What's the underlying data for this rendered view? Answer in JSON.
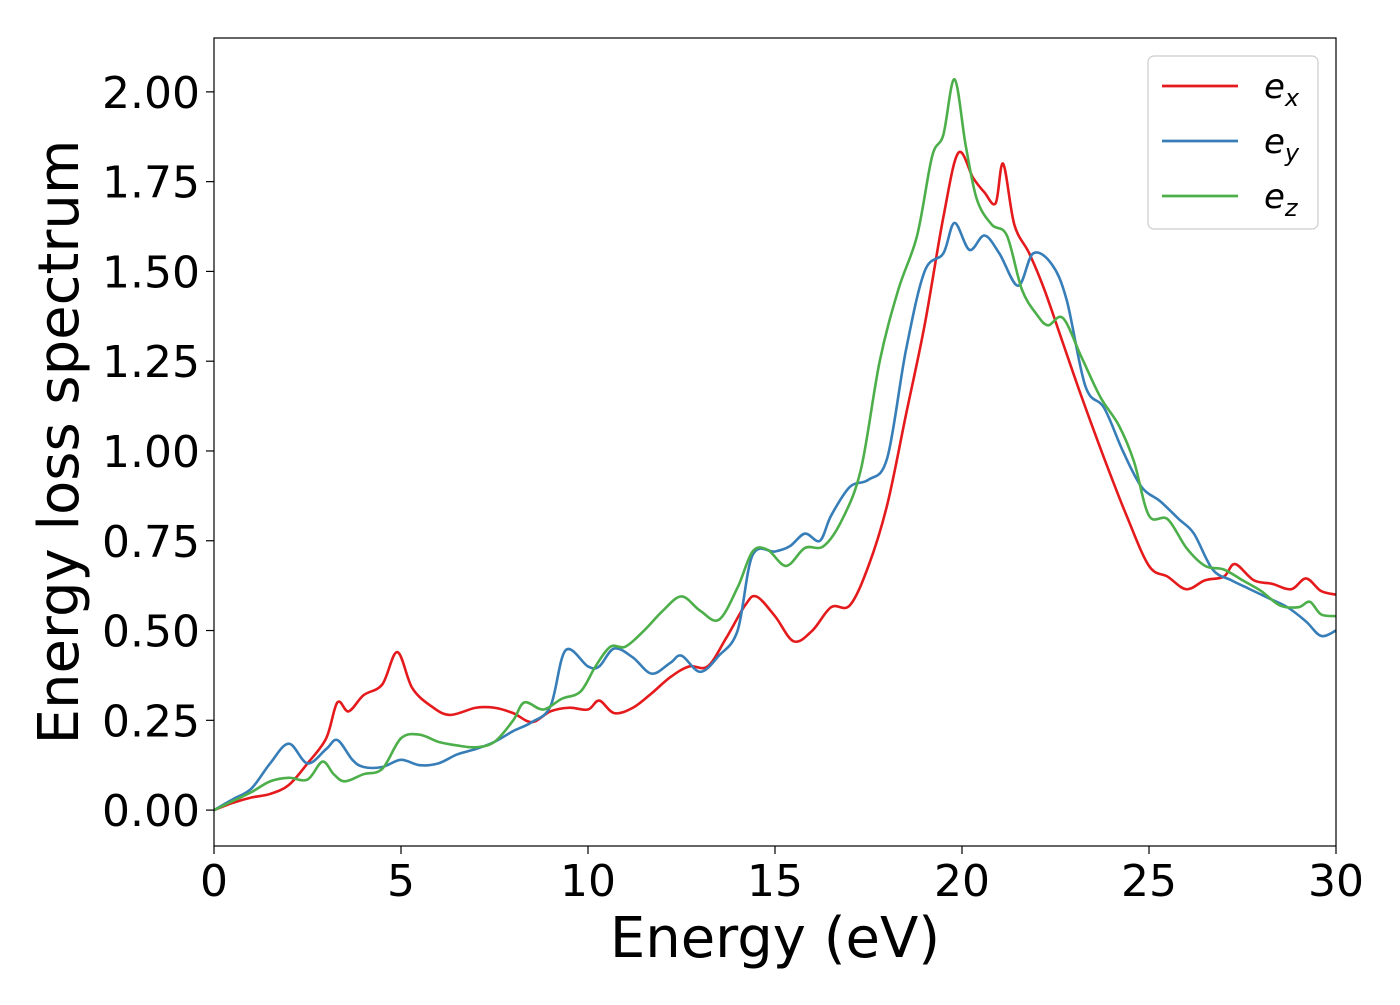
{
  "chart_data": {
    "type": "line",
    "title": "",
    "xlabel": "Energy (eV)",
    "ylabel": "Energy loss spectrum",
    "xlim": [
      0,
      30
    ],
    "ylim": [
      -0.1,
      2.15
    ],
    "x_ticks": [
      0,
      5,
      10,
      15,
      20,
      25,
      30
    ],
    "x_tick_labels": [
      "0",
      "5",
      "10",
      "15",
      "20",
      "25",
      "30"
    ],
    "y_ticks": [
      0.0,
      0.25,
      0.5,
      0.75,
      1.0,
      1.25,
      1.5,
      1.75,
      2.0
    ],
    "y_tick_labels": [
      "0.00",
      "0.25",
      "0.50",
      "0.75",
      "1.00",
      "1.25",
      "1.50",
      "1.75",
      "2.00"
    ],
    "grid": false,
    "legend": {
      "placement": "top-right",
      "entries": [
        {
          "base": "e",
          "sub": "x",
          "color": "#e41a1c"
        },
        {
          "base": "e",
          "sub": "y",
          "color": "#377eb8"
        },
        {
          "base": "e",
          "sub": "z",
          "color": "#4daf4a"
        }
      ]
    },
    "series": [
      {
        "name": "e_x",
        "color": "#e41a1c",
        "points": [
          [
            0,
            0
          ],
          [
            0.5,
            0.02
          ],
          [
            1,
            0.035
          ],
          [
            1.5,
            0.045
          ],
          [
            2,
            0.07
          ],
          [
            2.5,
            0.13
          ],
          [
            3,
            0.2
          ],
          [
            3.3,
            0.3
          ],
          [
            3.6,
            0.275
          ],
          [
            4,
            0.32
          ],
          [
            4.5,
            0.35
          ],
          [
            4.9,
            0.44
          ],
          [
            5.3,
            0.34
          ],
          [
            5.8,
            0.29
          ],
          [
            6.3,
            0.265
          ],
          [
            7,
            0.285
          ],
          [
            7.5,
            0.285
          ],
          [
            8,
            0.27
          ],
          [
            8.5,
            0.245
          ],
          [
            9,
            0.275
          ],
          [
            9.5,
            0.285
          ],
          [
            10,
            0.28
          ],
          [
            10.3,
            0.305
          ],
          [
            10.7,
            0.27
          ],
          [
            11.2,
            0.285
          ],
          [
            11.7,
            0.325
          ],
          [
            12.2,
            0.37
          ],
          [
            12.7,
            0.4
          ],
          [
            13.2,
            0.4
          ],
          [
            13.7,
            0.48
          ],
          [
            14.2,
            0.57
          ],
          [
            14.5,
            0.595
          ],
          [
            15,
            0.54
          ],
          [
            15.5,
            0.47
          ],
          [
            16,
            0.5
          ],
          [
            16.5,
            0.565
          ],
          [
            17,
            0.57
          ],
          [
            17.5,
            0.68
          ],
          [
            18,
            0.85
          ],
          [
            18.5,
            1.1
          ],
          [
            19,
            1.35
          ],
          [
            19.5,
            1.65
          ],
          [
            19.9,
            1.83
          ],
          [
            20.3,
            1.76
          ],
          [
            20.6,
            1.72
          ],
          [
            20.9,
            1.69
          ],
          [
            21.1,
            1.8
          ],
          [
            21.4,
            1.63
          ],
          [
            21.8,
            1.55
          ],
          [
            22.2,
            1.45
          ],
          [
            22.7,
            1.3
          ],
          [
            23.2,
            1.15
          ],
          [
            23.8,
            0.98
          ],
          [
            24.4,
            0.82
          ],
          [
            25,
            0.68
          ],
          [
            25.5,
            0.65
          ],
          [
            26,
            0.615
          ],
          [
            26.5,
            0.64
          ],
          [
            27,
            0.65
          ],
          [
            27.3,
            0.685
          ],
          [
            27.8,
            0.64
          ],
          [
            28.3,
            0.63
          ],
          [
            28.8,
            0.615
          ],
          [
            29.2,
            0.645
          ],
          [
            29.6,
            0.61
          ],
          [
            30,
            0.6
          ]
        ]
      },
      {
        "name": "e_y",
        "color": "#377eb8",
        "points": [
          [
            0,
            0
          ],
          [
            0.5,
            0.03
          ],
          [
            1,
            0.06
          ],
          [
            1.5,
            0.13
          ],
          [
            2,
            0.185
          ],
          [
            2.5,
            0.13
          ],
          [
            3,
            0.17
          ],
          [
            3.3,
            0.195
          ],
          [
            3.7,
            0.14
          ],
          [
            4,
            0.12
          ],
          [
            4.5,
            0.12
          ],
          [
            5,
            0.14
          ],
          [
            5.5,
            0.125
          ],
          [
            6,
            0.13
          ],
          [
            6.5,
            0.155
          ],
          [
            7,
            0.17
          ],
          [
            7.5,
            0.19
          ],
          [
            8,
            0.22
          ],
          [
            8.5,
            0.245
          ],
          [
            9,
            0.29
          ],
          [
            9.4,
            0.445
          ],
          [
            10,
            0.4
          ],
          [
            10.3,
            0.4
          ],
          [
            10.7,
            0.45
          ],
          [
            11.2,
            0.425
          ],
          [
            11.7,
            0.38
          ],
          [
            12.2,
            0.41
          ],
          [
            12.5,
            0.43
          ],
          [
            13,
            0.385
          ],
          [
            13.5,
            0.43
          ],
          [
            14,
            0.5
          ],
          [
            14.4,
            0.71
          ],
          [
            15,
            0.72
          ],
          [
            15.4,
            0.735
          ],
          [
            15.8,
            0.77
          ],
          [
            16.2,
            0.75
          ],
          [
            16.5,
            0.82
          ],
          [
            17,
            0.9
          ],
          [
            17.5,
            0.92
          ],
          [
            18,
            0.98
          ],
          [
            18.5,
            1.28
          ],
          [
            19,
            1.5
          ],
          [
            19.5,
            1.55
          ],
          [
            19.8,
            1.635
          ],
          [
            20.2,
            1.56
          ],
          [
            20.6,
            1.6
          ],
          [
            21,
            1.55
          ],
          [
            21.5,
            1.46
          ],
          [
            21.9,
            1.55
          ],
          [
            22.4,
            1.52
          ],
          [
            22.8,
            1.42
          ],
          [
            23.3,
            1.18
          ],
          [
            23.8,
            1.12
          ],
          [
            24.3,
            1.0
          ],
          [
            24.8,
            0.9
          ],
          [
            25.3,
            0.86
          ],
          [
            25.8,
            0.81
          ],
          [
            26.2,
            0.77
          ],
          [
            26.7,
            0.67
          ],
          [
            27.2,
            0.64
          ],
          [
            27.7,
            0.615
          ],
          [
            28.2,
            0.59
          ],
          [
            28.7,
            0.565
          ],
          [
            29.2,
            0.525
          ],
          [
            29.6,
            0.485
          ],
          [
            30,
            0.5
          ]
        ]
      },
      {
        "name": "e_z",
        "color": "#4daf4a",
        "points": [
          [
            0,
            0
          ],
          [
            0.5,
            0.025
          ],
          [
            1,
            0.05
          ],
          [
            1.5,
            0.08
          ],
          [
            2,
            0.09
          ],
          [
            2.5,
            0.085
          ],
          [
            2.9,
            0.135
          ],
          [
            3.2,
            0.1
          ],
          [
            3.5,
            0.08
          ],
          [
            4,
            0.1
          ],
          [
            4.5,
            0.115
          ],
          [
            5,
            0.2
          ],
          [
            5.5,
            0.21
          ],
          [
            6,
            0.19
          ],
          [
            6.5,
            0.18
          ],
          [
            7,
            0.175
          ],
          [
            7.5,
            0.19
          ],
          [
            8,
            0.25
          ],
          [
            8.3,
            0.3
          ],
          [
            8.8,
            0.28
          ],
          [
            9.3,
            0.31
          ],
          [
            9.8,
            0.33
          ],
          [
            10.2,
            0.4
          ],
          [
            10.6,
            0.455
          ],
          [
            11,
            0.455
          ],
          [
            11.5,
            0.5
          ],
          [
            12,
            0.555
          ],
          [
            12.5,
            0.595
          ],
          [
            13,
            0.555
          ],
          [
            13.5,
            0.53
          ],
          [
            14,
            0.62
          ],
          [
            14.4,
            0.72
          ],
          [
            14.8,
            0.725
          ],
          [
            15.3,
            0.68
          ],
          [
            15.8,
            0.73
          ],
          [
            16.3,
            0.735
          ],
          [
            16.8,
            0.81
          ],
          [
            17.3,
            0.95
          ],
          [
            17.8,
            1.25
          ],
          [
            18.3,
            1.45
          ],
          [
            18.8,
            1.6
          ],
          [
            19.2,
            1.82
          ],
          [
            19.5,
            1.88
          ],
          [
            19.8,
            2.035
          ],
          [
            20.1,
            1.85
          ],
          [
            20.4,
            1.7
          ],
          [
            20.8,
            1.63
          ],
          [
            21.2,
            1.6
          ],
          [
            21.6,
            1.45
          ],
          [
            22,
            1.38
          ],
          [
            22.3,
            1.35
          ],
          [
            22.7,
            1.37
          ],
          [
            23.2,
            1.26
          ],
          [
            23.7,
            1.15
          ],
          [
            24.2,
            1.07
          ],
          [
            24.6,
            0.97
          ],
          [
            25,
            0.82
          ],
          [
            25.5,
            0.81
          ],
          [
            26,
            0.73
          ],
          [
            26.5,
            0.68
          ],
          [
            27,
            0.67
          ],
          [
            27.5,
            0.64
          ],
          [
            28,
            0.61
          ],
          [
            28.5,
            0.57
          ],
          [
            29,
            0.565
          ],
          [
            29.3,
            0.58
          ],
          [
            29.6,
            0.545
          ],
          [
            30,
            0.54
          ]
        ]
      }
    ]
  }
}
